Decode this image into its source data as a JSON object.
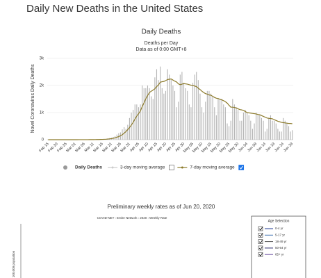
{
  "title": "Daily New Deaths in the United States",
  "chart_data": [
    {
      "type": "bar",
      "title": "Daily Deaths",
      "subtitle": [
        "Deaths per Day",
        "Data as of 0:00 GMT+8"
      ],
      "y_label": "Novel Coronavirus Daily Deaths",
      "categories": [
        "Feb 15",
        null,
        null,
        null,
        null,
        "Feb 20",
        null,
        null,
        null,
        null,
        "Feb 25",
        null,
        null,
        null,
        null,
        "Mar 01",
        null,
        null,
        null,
        null,
        "Mar 06",
        null,
        null,
        null,
        null,
        "Mar 11",
        null,
        null,
        null,
        null,
        "Mar 16",
        null,
        null,
        null,
        null,
        "Mar 21",
        null,
        null,
        null,
        null,
        "Mar 26",
        null,
        null,
        null,
        null,
        "Mar 31",
        null,
        null,
        null,
        null,
        "Apr 05",
        null,
        null,
        null,
        null,
        "Apr 10",
        null,
        null,
        null,
        null,
        "Apr 15",
        null,
        null,
        null,
        null,
        "Apr 20",
        null,
        null,
        null,
        null,
        "Apr 25",
        null,
        null,
        null,
        null,
        "Apr 30",
        null,
        null,
        null,
        null,
        "May 05",
        null,
        null,
        null,
        null,
        "May 10",
        null,
        null,
        null,
        null,
        "May 15",
        null,
        null,
        null,
        null,
        "May 20",
        null,
        null,
        null,
        null,
        "May 25",
        null,
        null,
        null,
        null,
        "May 30",
        null,
        null,
        null,
        null,
        "Jun 04",
        null,
        null,
        null,
        null,
        "Jun 09",
        null,
        null,
        null,
        null,
        "Jun 14",
        null,
        null,
        null,
        null,
        "Jun 19",
        null,
        null,
        null,
        null,
        "Jun 24",
        null,
        null,
        null,
        null,
        "Jun 29"
      ],
      "series": [
        {
          "name": "Daily Deaths",
          "type": "bar",
          "color": "#b4b4b4",
          "values": [
            0,
            0,
            0,
            0,
            0,
            0,
            0,
            0,
            0,
            0,
            0,
            0,
            0,
            0,
            0,
            1,
            0,
            3,
            2,
            1,
            2,
            3,
            2,
            4,
            5,
            8,
            10,
            12,
            11,
            14,
            18,
            25,
            30,
            45,
            60,
            70,
            100,
            130,
            190,
            240,
            270,
            380,
            460,
            400,
            550,
            800,
            1000,
            1100,
            1300,
            1300,
            1200,
            1300,
            2000,
            1900,
            1900,
            2000,
            1900,
            1600,
            1500,
            2300,
            2600,
            2200,
            2700,
            1900,
            1700,
            1800,
            2600,
            2400,
            2200,
            2000,
            1800,
            1200,
            1400,
            2400,
            2500,
            2100,
            1900,
            1800,
            1300,
            1200,
            2100,
            2400,
            2500,
            2200,
            1700,
            1200,
            1000,
            1400,
            1800,
            1800,
            1700,
            1600,
            1200,
            900,
            1500,
            1500,
            1500,
            1300,
            1200,
            600,
            500,
            700,
            1500,
            1300,
            1200,
            1100,
            700,
            700,
            1000,
            1100,
            1000,
            900,
            700,
            400,
            600,
            1000,
            900,
            900,
            800,
            700,
            300,
            400,
            800,
            900,
            700,
            700,
            600,
            400,
            300,
            300,
            800,
            700,
            600,
            500,
            300,
            350
          ]
        },
        {
          "name": "3-day moving average",
          "type": "line",
          "color": "#cccccc",
          "visible": false
        },
        {
          "name": "7-day moving average",
          "type": "line",
          "color": "#8c7a2a",
          "visible": true,
          "values": [
            0,
            0,
            0,
            0,
            0,
            0,
            0,
            0,
            0,
            0,
            0,
            0,
            0,
            0,
            0,
            0,
            0,
            1,
            1,
            1,
            2,
            2,
            2,
            3,
            3,
            4,
            5,
            6,
            7,
            9,
            11,
            14,
            18,
            24,
            30,
            40,
            52,
            68,
            90,
            115,
            145,
            185,
            240,
            300,
            370,
            450,
            540,
            640,
            760,
            870,
            960,
            1060,
            1220,
            1360,
            1510,
            1630,
            1740,
            1790,
            1830,
            1880,
            1960,
            2020,
            2120,
            2140,
            2150,
            2180,
            2220,
            2230,
            2240,
            2200,
            2160,
            2130,
            2060,
            2030,
            2050,
            2070,
            2060,
            2050,
            2030,
            2010,
            2000,
            1980,
            1960,
            1900,
            1850,
            1790,
            1740,
            1700,
            1680,
            1650,
            1640,
            1600,
            1560,
            1530,
            1520,
            1490,
            1470,
            1440,
            1400,
            1350,
            1270,
            1200,
            1200,
            1190,
            1170,
            1140,
            1110,
            1100,
            1080,
            1040,
            1000,
            990,
            980,
            970,
            960,
            950,
            930,
            920,
            890,
            860,
            830,
            800,
            790,
            780,
            770,
            740,
            710,
            680,
            660,
            640,
            630,
            620,
            610,
            600,
            600,
            590
          ]
        }
      ],
      "ylim": [
        0,
        3000
      ],
      "yticks": [
        0,
        {
          "value": 1000,
          "label": "1k"
        },
        {
          "value": 2000,
          "label": "2k"
        },
        {
          "value": 3000,
          "label": "3k"
        }
      ]
    },
    {
      "type": "line",
      "title": "Preliminary weekly rates as of Jun 20, 2020",
      "subtitle": "COVID-NET : Entire Network : 2020 : Weekly Rate",
      "y_label": "100,000 population",
      "legend_title": "Age Selection",
      "series": [
        {
          "name": "0-4 yr",
          "color": "#1f3a93"
        },
        {
          "name": "5-17 yr",
          "color": "#3a6fb0"
        },
        {
          "name": "18-49 yr",
          "color": "#555555"
        },
        {
          "name": "50-64 yr",
          "color": "#2b2b6b"
        },
        {
          "name": "65+ yr",
          "color": "#6a4ea0"
        }
      ]
    }
  ]
}
